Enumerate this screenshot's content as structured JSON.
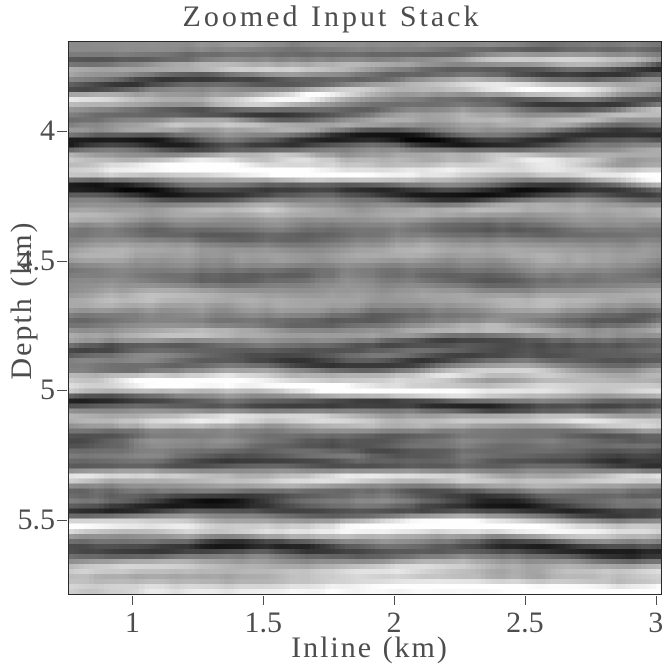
{
  "chart_data": {
    "type": "heatmap",
    "title": "Zoomed Input Stack",
    "xlabel": "Inline (km)",
    "ylabel": "Depth (km)",
    "xlim": [
      0.758,
      3.02
    ],
    "ylim": [
      3.658,
      5.785
    ],
    "y_direction": "down",
    "xticks": [
      1,
      1.5,
      2,
      2.5,
      3
    ],
    "yticks": [
      4,
      4.5,
      5,
      5.5
    ],
    "grid": false,
    "legend": "none",
    "colormap": "grayscale",
    "background": "#ffffff",
    "text_color": "#4d4d4d",
    "frame_color": "#2a2a2a",
    "image": {
      "cols": 118,
      "rows": 110,
      "base": 0.56,
      "contrast": 0.5,
      "noise": [
        {
          "amp": 0.055,
          "nx": 16,
          "ny": 13,
          "seed": 11
        },
        {
          "amp": 0.03,
          "nx": 46,
          "ny": 34,
          "seed": 29
        }
      ],
      "layers": [
        [
          3.695,
          -0.35,
          1.1,
          -2.0,
          0.5,
          2.0,
          0.1,
          0.3,
          1.5,
          0.2
        ],
        [
          3.735,
          0.4,
          1.1,
          -3.0,
          0.6,
          1.8,
          0.55,
          0.4,
          2.0,
          0.6
        ],
        [
          3.785,
          -0.55,
          1.3,
          -3.5,
          0.8,
          2.2,
          0.3,
          0.3,
          1.2,
          0.1
        ],
        [
          3.845,
          0.6,
          1.4,
          -4.0,
          1.0,
          1.6,
          0.8,
          0.5,
          2.4,
          0.35
        ],
        [
          3.905,
          -0.5,
          1.3,
          -4.0,
          0.9,
          2.0,
          0.45,
          0.4,
          1.8,
          0.7
        ],
        [
          3.96,
          0.35,
          1.2,
          -3.0,
          0.8,
          2.6,
          0.15,
          0.4,
          1.4,
          0.9
        ],
        [
          4.03,
          -0.9,
          1.6,
          -1.5,
          1.0,
          2.3,
          0.6,
          0.25,
          1.7,
          0.25
        ],
        [
          4.095,
          0.4,
          1.2,
          -1.0,
          0.8,
          2.8,
          0.9,
          0.5,
          2.2,
          0.5
        ],
        [
          4.15,
          0.85,
          1.7,
          0.5,
          0.7,
          1.9,
          0.35,
          0.3,
          1.3,
          0.8
        ],
        [
          4.225,
          -0.85,
          1.7,
          0.5,
          0.8,
          2.4,
          0.7,
          0.25,
          1.6,
          0.15
        ],
        [
          4.3,
          0.3,
          1.5,
          -1.0,
          0.6,
          2.0,
          0.2,
          0.4,
          2.6,
          0.4
        ],
        [
          4.385,
          -0.3,
          1.7,
          -1.0,
          0.7,
          1.7,
          0.65,
          0.35,
          1.9,
          0.75
        ],
        [
          4.465,
          0.2,
          1.8,
          0.0,
          0.8,
          2.1,
          0.4,
          0.4,
          1.5,
          0.3
        ],
        [
          4.55,
          -0.28,
          1.8,
          1.0,
          0.8,
          1.8,
          0.85,
          0.35,
          2.3,
          0.6
        ],
        [
          4.64,
          0.22,
          1.8,
          0.0,
          0.7,
          2.5,
          0.25,
          0.4,
          1.4,
          0.05
        ],
        [
          4.72,
          -0.3,
          1.6,
          -1.0,
          0.7,
          2.0,
          0.55,
          0.35,
          1.8,
          0.45
        ],
        [
          4.77,
          0.3,
          1.3,
          -1.5,
          0.6,
          2.4,
          0.05,
          0.4,
          2.0,
          0.85
        ],
        [
          4.82,
          -0.5,
          1.5,
          -2.0,
          0.8,
          1.9,
          0.5,
          0.3,
          1.6,
          0.2
        ],
        [
          4.88,
          -0.55,
          1.4,
          -2.5,
          0.9,
          2.2,
          0.15,
          0.3,
          1.3,
          0.55
        ],
        [
          4.935,
          0.45,
          1.2,
          -1.0,
          0.6,
          2.7,
          0.75,
          0.4,
          1.7,
          0.1
        ],
        [
          4.985,
          0.8,
          1.5,
          1.5,
          0.7,
          1.6,
          0.3,
          0.3,
          1.2,
          0.65
        ],
        [
          5.045,
          -0.75,
          1.4,
          1.0,
          0.6,
          2.1,
          0.6,
          0.3,
          1.5,
          0.35
        ],
        [
          5.105,
          0.55,
          1.4,
          0.5,
          0.6,
          2.3,
          0.95,
          0.35,
          1.8,
          0.7
        ],
        [
          5.165,
          -0.3,
          1.3,
          0.0,
          0.6,
          1.8,
          0.4,
          0.4,
          2.2,
          0.15
        ],
        [
          5.22,
          -0.35,
          1.3,
          0.5,
          0.6,
          2.6,
          0.7,
          0.4,
          1.6,
          0.5
        ],
        [
          5.275,
          -0.55,
          1.4,
          0.0,
          0.7,
          2.0,
          0.1,
          0.3,
          1.4,
          0.8
        ],
        [
          5.33,
          0.6,
          1.3,
          0.5,
          0.6,
          2.2,
          0.5,
          0.35,
          1.9,
          0.25
        ],
        [
          5.395,
          -0.45,
          1.3,
          0.0,
          0.6,
          1.7,
          0.85,
          0.35,
          2.4,
          0.6
        ],
        [
          5.45,
          -0.7,
          1.4,
          0.5,
          0.7,
          2.1,
          0.25,
          0.25,
          1.5,
          0.05
        ],
        [
          5.52,
          0.85,
          1.6,
          0.0,
          0.6,
          1.8,
          0.6,
          0.3,
          1.3,
          0.4
        ],
        [
          5.6,
          -0.7,
          1.6,
          0.5,
          0.7,
          2.3,
          0.05,
          0.3,
          1.7,
          0.75
        ],
        [
          5.68,
          0.45,
          1.5,
          0.0,
          0.6,
          1.9,
          0.45,
          0.35,
          2.1,
          0.1
        ],
        [
          5.76,
          0.85,
          2.0,
          0.0,
          0.5,
          1.5,
          0.8,
          0.3,
          0.5,
          0.75
        ],
        [
          5.83,
          -0.35,
          1.6,
          0.0,
          0.5,
          1.6,
          0.2,
          0.85,
          0.5,
          0.25
        ]
      ]
    }
  }
}
